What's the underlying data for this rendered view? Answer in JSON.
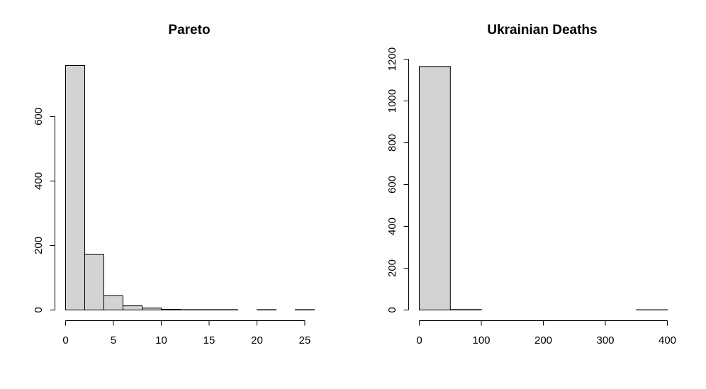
{
  "chart_data": [
    {
      "type": "bar",
      "title": "Pareto",
      "xlabel": "",
      "ylabel": "",
      "bins": [
        {
          "from": 0,
          "to": 2,
          "count": 758
        },
        {
          "from": 2,
          "to": 4,
          "count": 172
        },
        {
          "from": 4,
          "to": 6,
          "count": 44
        },
        {
          "from": 6,
          "to": 8,
          "count": 13
        },
        {
          "from": 8,
          "to": 10,
          "count": 6
        },
        {
          "from": 10,
          "to": 12,
          "count": 2
        },
        {
          "from": 12,
          "to": 14,
          "count": 1
        },
        {
          "from": 14,
          "to": 16,
          "count": 1
        },
        {
          "from": 16,
          "to": 18,
          "count": 1
        },
        {
          "from": 18,
          "to": 20,
          "count": 0
        },
        {
          "from": 20,
          "to": 22,
          "count": 1
        },
        {
          "from": 22,
          "to": 24,
          "count": 0
        },
        {
          "from": 24,
          "to": 26,
          "count": 1
        }
      ],
      "xticks": [
        0,
        5,
        10,
        15,
        20,
        25
      ],
      "yticks": [
        0,
        200,
        400,
        600
      ],
      "xlim": [
        0,
        26
      ],
      "ylim": [
        0,
        758
      ],
      "grid": false
    },
    {
      "type": "bar",
      "title": "Ukrainian Deaths",
      "xlabel": "",
      "ylabel": "",
      "bins": [
        {
          "from": 0,
          "to": 50,
          "count": 1165
        },
        {
          "from": 50,
          "to": 100,
          "count": 2
        },
        {
          "from": 100,
          "to": 150,
          "count": 0
        },
        {
          "from": 150,
          "to": 200,
          "count": 0
        },
        {
          "from": 200,
          "to": 250,
          "count": 0
        },
        {
          "from": 250,
          "to": 300,
          "count": 0
        },
        {
          "from": 300,
          "to": 350,
          "count": 0
        },
        {
          "from": 350,
          "to": 400,
          "count": 1
        }
      ],
      "xticks": [
        0,
        100,
        200,
        300,
        400
      ],
      "yticks": [
        0,
        200,
        400,
        600,
        800,
        1000,
        1200
      ],
      "xlim": [
        0,
        400
      ],
      "ylim": [
        0,
        1200
      ],
      "grid": false
    }
  ]
}
